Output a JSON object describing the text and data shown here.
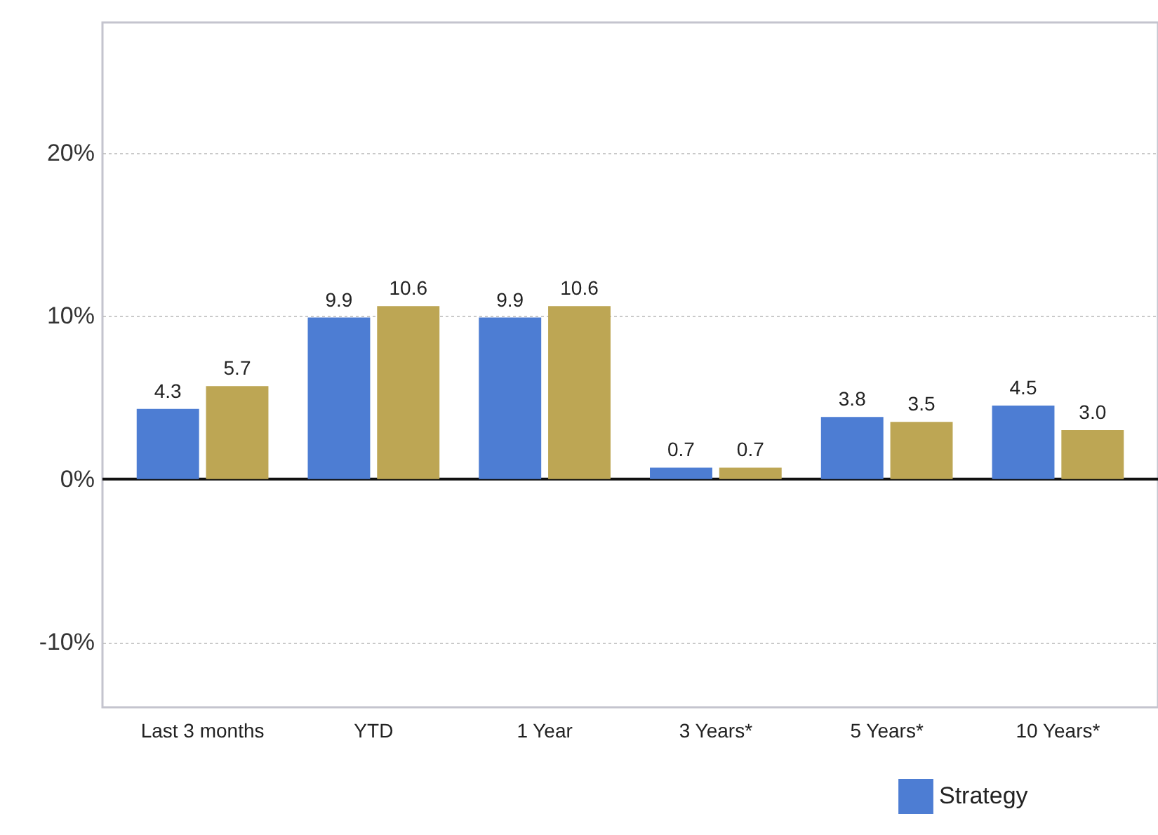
{
  "chart_data": {
    "type": "bar",
    "categories": [
      "Last 3 months",
      "YTD",
      "1 Year",
      "3 Years*",
      "5 Years*",
      "10 Years*"
    ],
    "series": [
      {
        "name": "Strategy",
        "color": "#4d7dd3",
        "values": [
          4.3,
          9.9,
          9.9,
          0.7,
          3.8,
          4.5
        ],
        "value_labels": [
          "4.3",
          "9.9",
          "9.9",
          "0.7",
          "3.8",
          "4.5"
        ]
      },
      {
        "color": "#bda654",
        "values": [
          5.7,
          10.6,
          10.6,
          0.7,
          3.5,
          3.0
        ],
        "value_labels": [
          "5.7",
          "10.6",
          "10.6",
          "0.7",
          "3.5",
          "3.0"
        ]
      }
    ],
    "ylim": [
      -14,
      28
    ],
    "yticks": [
      {
        "value": -10,
        "label": "-10%"
      },
      {
        "value": 0,
        "label": "0%"
      },
      {
        "value": 10,
        "label": "10%"
      },
      {
        "value": 20,
        "label": "20%"
      }
    ],
    "grid": "y",
    "legend": "bottom right",
    "ref_lines": [
      {
        "axis": "y",
        "value": 0,
        "color": "#111111"
      }
    ]
  }
}
